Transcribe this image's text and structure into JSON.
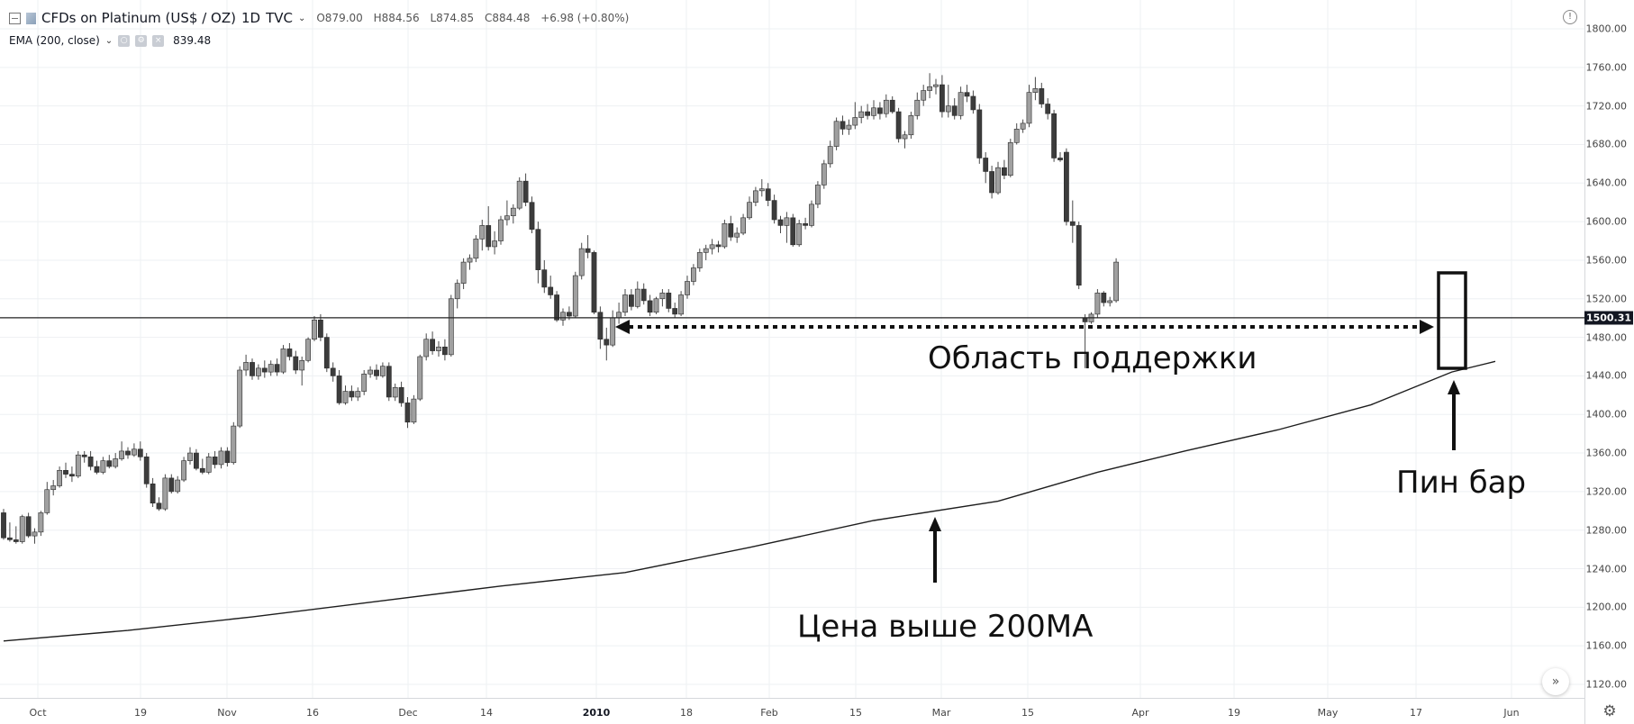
{
  "header": {
    "symbol": "CFDs on Platinum (US$ / OZ)",
    "interval": "1D",
    "source": "TVC",
    "ohlc": {
      "open": "O879.00",
      "high": "H884.56",
      "low": "L874.85",
      "close": "C884.48",
      "change": "+6.98 (+0.80%)"
    },
    "indicator": {
      "label": "EMA (200, close)",
      "value": "839.48"
    }
  },
  "colors": {
    "up": "#a0a0a0",
    "down": "#3c3c3c",
    "wick": "#4a4a4a",
    "ema": "#1e1e1e",
    "support": "#222222",
    "grid": "#eef0f3",
    "annotation": "#111111"
  },
  "icons": {
    "info": "info-icon",
    "settings": "gear-icon",
    "scroll": "chevron-right-icon",
    "collapse": "collapse-icon"
  },
  "axis": {
    "y_ticks": [
      "1800.00",
      "1760.00",
      "1720.00",
      "1680.00",
      "1640.00",
      "1600.00",
      "1560.00",
      "1520.00",
      "1480.00",
      "1440.00",
      "1400.00",
      "1360.00",
      "1320.00",
      "1280.00",
      "1240.00",
      "1200.00",
      "1160.00",
      "1120.00"
    ],
    "x_ticks": [
      {
        "label": "Oct",
        "bold": false
      },
      {
        "label": "19",
        "bold": false
      },
      {
        "label": "Nov",
        "bold": false
      },
      {
        "label": "16",
        "bold": false
      },
      {
        "label": "Dec",
        "bold": false
      },
      {
        "label": "14",
        "bold": false
      },
      {
        "label": "2010",
        "bold": true
      },
      {
        "label": "18",
        "bold": false
      },
      {
        "label": "Feb",
        "bold": false
      },
      {
        "label": "15",
        "bold": false
      },
      {
        "label": "Mar",
        "bold": false
      },
      {
        "label": "15",
        "bold": false
      },
      {
        "label": "Apr",
        "bold": false
      },
      {
        "label": "19",
        "bold": false
      },
      {
        "label": "May",
        "bold": false
      },
      {
        "label": "17",
        "bold": false
      },
      {
        "label": "Jun",
        "bold": false
      }
    ],
    "price_line_label": "1500.31"
  },
  "annotations": {
    "support": "Область поддержки",
    "pinbar": "Пин бар",
    "ema_note": "Цена выше 200MA"
  },
  "chart_data": {
    "type": "candlestick",
    "title": "CFDs on Platinum (US$ / OZ)",
    "ylim": [
      1112,
      1820
    ],
    "grid": true,
    "horizontal_line": 1500.31,
    "candles": [
      {
        "o": 1298,
        "h": 1302,
        "l": 1270,
        "c": 1272
      },
      {
        "o": 1272,
        "h": 1288,
        "l": 1268,
        "c": 1270
      },
      {
        "o": 1270,
        "h": 1284,
        "l": 1266,
        "c": 1268
      },
      {
        "o": 1268,
        "h": 1296,
        "l": 1266,
        "c": 1294
      },
      {
        "o": 1294,
        "h": 1298,
        "l": 1272,
        "c": 1274
      },
      {
        "o": 1274,
        "h": 1282,
        "l": 1266,
        "c": 1278
      },
      {
        "o": 1278,
        "h": 1300,
        "l": 1274,
        "c": 1298
      },
      {
        "o": 1298,
        "h": 1330,
        "l": 1296,
        "c": 1322
      },
      {
        "o": 1322,
        "h": 1332,
        "l": 1316,
        "c": 1326
      },
      {
        "o": 1326,
        "h": 1346,
        "l": 1324,
        "c": 1342
      },
      {
        "o": 1342,
        "h": 1350,
        "l": 1334,
        "c": 1338
      },
      {
        "o": 1338,
        "h": 1346,
        "l": 1330,
        "c": 1336
      },
      {
        "o": 1336,
        "h": 1362,
        "l": 1334,
        "c": 1358
      },
      {
        "o": 1358,
        "h": 1362,
        "l": 1350,
        "c": 1356
      },
      {
        "o": 1356,
        "h": 1362,
        "l": 1342,
        "c": 1346
      },
      {
        "o": 1346,
        "h": 1352,
        "l": 1338,
        "c": 1340
      },
      {
        "o": 1340,
        "h": 1356,
        "l": 1338,
        "c": 1352
      },
      {
        "o": 1352,
        "h": 1358,
        "l": 1344,
        "c": 1346
      },
      {
        "o": 1346,
        "h": 1360,
        "l": 1344,
        "c": 1354
      },
      {
        "o": 1354,
        "h": 1372,
        "l": 1352,
        "c": 1362
      },
      {
        "o": 1362,
        "h": 1366,
        "l": 1354,
        "c": 1358
      },
      {
        "o": 1358,
        "h": 1370,
        "l": 1356,
        "c": 1364
      },
      {
        "o": 1364,
        "h": 1372,
        "l": 1352,
        "c": 1356
      },
      {
        "o": 1356,
        "h": 1360,
        "l": 1324,
        "c": 1328
      },
      {
        "o": 1328,
        "h": 1334,
        "l": 1304,
        "c": 1308
      },
      {
        "o": 1308,
        "h": 1314,
        "l": 1300,
        "c": 1302
      },
      {
        "o": 1302,
        "h": 1338,
        "l": 1300,
        "c": 1334
      },
      {
        "o": 1334,
        "h": 1338,
        "l": 1318,
        "c": 1320
      },
      {
        "o": 1320,
        "h": 1336,
        "l": 1318,
        "c": 1332
      },
      {
        "o": 1332,
        "h": 1356,
        "l": 1330,
        "c": 1352
      },
      {
        "o": 1352,
        "h": 1366,
        "l": 1348,
        "c": 1360
      },
      {
        "o": 1360,
        "h": 1364,
        "l": 1342,
        "c": 1344
      },
      {
        "o": 1344,
        "h": 1354,
        "l": 1338,
        "c": 1340
      },
      {
        "o": 1340,
        "h": 1360,
        "l": 1338,
        "c": 1356
      },
      {
        "o": 1356,
        "h": 1362,
        "l": 1344,
        "c": 1348
      },
      {
        "o": 1348,
        "h": 1366,
        "l": 1344,
        "c": 1362
      },
      {
        "o": 1362,
        "h": 1366,
        "l": 1346,
        "c": 1350
      },
      {
        "o": 1350,
        "h": 1392,
        "l": 1348,
        "c": 1388
      },
      {
        "o": 1388,
        "h": 1450,
        "l": 1386,
        "c": 1446
      },
      {
        "o": 1446,
        "h": 1462,
        "l": 1440,
        "c": 1454
      },
      {
        "o": 1454,
        "h": 1458,
        "l": 1436,
        "c": 1440
      },
      {
        "o": 1440,
        "h": 1452,
        "l": 1436,
        "c": 1448
      },
      {
        "o": 1448,
        "h": 1456,
        "l": 1438,
        "c": 1444
      },
      {
        "o": 1444,
        "h": 1456,
        "l": 1440,
        "c": 1452
      },
      {
        "o": 1452,
        "h": 1458,
        "l": 1440,
        "c": 1444
      },
      {
        "o": 1444,
        "h": 1472,
        "l": 1442,
        "c": 1468
      },
      {
        "o": 1468,
        "h": 1474,
        "l": 1456,
        "c": 1460
      },
      {
        "o": 1460,
        "h": 1466,
        "l": 1442,
        "c": 1446
      },
      {
        "o": 1446,
        "h": 1460,
        "l": 1430,
        "c": 1456
      },
      {
        "o": 1456,
        "h": 1480,
        "l": 1454,
        "c": 1478
      },
      {
        "o": 1478,
        "h": 1502,
        "l": 1476,
        "c": 1498
      },
      {
        "o": 1498,
        "h": 1504,
        "l": 1476,
        "c": 1480
      },
      {
        "o": 1480,
        "h": 1484,
        "l": 1444,
        "c": 1448
      },
      {
        "o": 1448,
        "h": 1454,
        "l": 1434,
        "c": 1440
      },
      {
        "o": 1440,
        "h": 1446,
        "l": 1410,
        "c": 1412
      },
      {
        "o": 1412,
        "h": 1430,
        "l": 1410,
        "c": 1424
      },
      {
        "o": 1424,
        "h": 1430,
        "l": 1414,
        "c": 1418
      },
      {
        "o": 1418,
        "h": 1428,
        "l": 1414,
        "c": 1424
      },
      {
        "o": 1424,
        "h": 1446,
        "l": 1420,
        "c": 1442
      },
      {
        "o": 1442,
        "h": 1450,
        "l": 1438,
        "c": 1446
      },
      {
        "o": 1446,
        "h": 1452,
        "l": 1436,
        "c": 1440
      },
      {
        "o": 1440,
        "h": 1454,
        "l": 1438,
        "c": 1450
      },
      {
        "o": 1450,
        "h": 1454,
        "l": 1414,
        "c": 1418
      },
      {
        "o": 1418,
        "h": 1432,
        "l": 1414,
        "c": 1428
      },
      {
        "o": 1428,
        "h": 1434,
        "l": 1408,
        "c": 1412
      },
      {
        "o": 1412,
        "h": 1418,
        "l": 1386,
        "c": 1392
      },
      {
        "o": 1392,
        "h": 1420,
        "l": 1390,
        "c": 1416
      },
      {
        "o": 1416,
        "h": 1462,
        "l": 1414,
        "c": 1460
      },
      {
        "o": 1460,
        "h": 1484,
        "l": 1456,
        "c": 1478
      },
      {
        "o": 1478,
        "h": 1486,
        "l": 1462,
        "c": 1466
      },
      {
        "o": 1466,
        "h": 1476,
        "l": 1460,
        "c": 1470
      },
      {
        "o": 1470,
        "h": 1478,
        "l": 1456,
        "c": 1462
      },
      {
        "o": 1462,
        "h": 1524,
        "l": 1460,
        "c": 1520
      },
      {
        "o": 1520,
        "h": 1540,
        "l": 1510,
        "c": 1536
      },
      {
        "o": 1536,
        "h": 1562,
        "l": 1530,
        "c": 1558
      },
      {
        "o": 1558,
        "h": 1566,
        "l": 1550,
        "c": 1562
      },
      {
        "o": 1562,
        "h": 1586,
        "l": 1558,
        "c": 1582
      },
      {
        "o": 1582,
        "h": 1602,
        "l": 1570,
        "c": 1596
      },
      {
        "o": 1596,
        "h": 1616,
        "l": 1570,
        "c": 1574
      },
      {
        "o": 1574,
        "h": 1590,
        "l": 1566,
        "c": 1580
      },
      {
        "o": 1580,
        "h": 1606,
        "l": 1576,
        "c": 1602
      },
      {
        "o": 1602,
        "h": 1622,
        "l": 1596,
        "c": 1606
      },
      {
        "o": 1606,
        "h": 1618,
        "l": 1598,
        "c": 1614
      },
      {
        "o": 1614,
        "h": 1646,
        "l": 1612,
        "c": 1642
      },
      {
        "o": 1642,
        "h": 1650,
        "l": 1616,
        "c": 1620
      },
      {
        "o": 1620,
        "h": 1626,
        "l": 1588,
        "c": 1592
      },
      {
        "o": 1592,
        "h": 1600,
        "l": 1536,
        "c": 1550
      },
      {
        "o": 1550,
        "h": 1560,
        "l": 1526,
        "c": 1532
      },
      {
        "o": 1532,
        "h": 1544,
        "l": 1520,
        "c": 1524
      },
      {
        "o": 1524,
        "h": 1528,
        "l": 1496,
        "c": 1498
      },
      {
        "o": 1498,
        "h": 1510,
        "l": 1492,
        "c": 1506
      },
      {
        "o": 1506,
        "h": 1512,
        "l": 1498,
        "c": 1502
      },
      {
        "o": 1502,
        "h": 1548,
        "l": 1500,
        "c": 1544
      },
      {
        "o": 1544,
        "h": 1578,
        "l": 1540,
        "c": 1572
      },
      {
        "o": 1572,
        "h": 1586,
        "l": 1562,
        "c": 1568
      },
      {
        "o": 1568,
        "h": 1570,
        "l": 1504,
        "c": 1506
      },
      {
        "o": 1506,
        "h": 1512,
        "l": 1468,
        "c": 1478
      },
      {
        "o": 1478,
        "h": 1490,
        "l": 1456,
        "c": 1472
      },
      {
        "o": 1472,
        "h": 1508,
        "l": 1470,
        "c": 1500
      },
      {
        "o": 1500,
        "h": 1516,
        "l": 1494,
        "c": 1506
      },
      {
        "o": 1506,
        "h": 1530,
        "l": 1502,
        "c": 1524
      },
      {
        "o": 1524,
        "h": 1530,
        "l": 1508,
        "c": 1512
      },
      {
        "o": 1512,
        "h": 1538,
        "l": 1510,
        "c": 1530
      },
      {
        "o": 1530,
        "h": 1536,
        "l": 1514,
        "c": 1518
      },
      {
        "o": 1518,
        "h": 1524,
        "l": 1502,
        "c": 1506
      },
      {
        "o": 1506,
        "h": 1522,
        "l": 1504,
        "c": 1520
      },
      {
        "o": 1520,
        "h": 1530,
        "l": 1512,
        "c": 1526
      },
      {
        "o": 1526,
        "h": 1530,
        "l": 1506,
        "c": 1510
      },
      {
        "o": 1510,
        "h": 1516,
        "l": 1500,
        "c": 1504
      },
      {
        "o": 1504,
        "h": 1528,
        "l": 1502,
        "c": 1524
      },
      {
        "o": 1524,
        "h": 1544,
        "l": 1520,
        "c": 1538
      },
      {
        "o": 1538,
        "h": 1556,
        "l": 1534,
        "c": 1552
      },
      {
        "o": 1552,
        "h": 1572,
        "l": 1548,
        "c": 1568
      },
      {
        "o": 1568,
        "h": 1576,
        "l": 1560,
        "c": 1572
      },
      {
        "o": 1572,
        "h": 1582,
        "l": 1566,
        "c": 1576
      },
      {
        "o": 1576,
        "h": 1580,
        "l": 1568,
        "c": 1574
      },
      {
        "o": 1574,
        "h": 1602,
        "l": 1572,
        "c": 1598
      },
      {
        "o": 1598,
        "h": 1606,
        "l": 1580,
        "c": 1584
      },
      {
        "o": 1584,
        "h": 1594,
        "l": 1578,
        "c": 1588
      },
      {
        "o": 1588,
        "h": 1608,
        "l": 1586,
        "c": 1604
      },
      {
        "o": 1604,
        "h": 1626,
        "l": 1602,
        "c": 1620
      },
      {
        "o": 1620,
        "h": 1636,
        "l": 1616,
        "c": 1632
      },
      {
        "o": 1632,
        "h": 1644,
        "l": 1626,
        "c": 1634
      },
      {
        "o": 1634,
        "h": 1640,
        "l": 1616,
        "c": 1622
      },
      {
        "o": 1622,
        "h": 1628,
        "l": 1598,
        "c": 1602
      },
      {
        "o": 1602,
        "h": 1606,
        "l": 1588,
        "c": 1596
      },
      {
        "o": 1596,
        "h": 1610,
        "l": 1578,
        "c": 1604
      },
      {
        "o": 1604,
        "h": 1608,
        "l": 1574,
        "c": 1576
      },
      {
        "o": 1576,
        "h": 1602,
        "l": 1574,
        "c": 1598
      },
      {
        "o": 1598,
        "h": 1604,
        "l": 1592,
        "c": 1596
      },
      {
        "o": 1596,
        "h": 1622,
        "l": 1594,
        "c": 1618
      },
      {
        "o": 1618,
        "h": 1642,
        "l": 1614,
        "c": 1638
      },
      {
        "o": 1638,
        "h": 1664,
        "l": 1634,
        "c": 1660
      },
      {
        "o": 1660,
        "h": 1684,
        "l": 1656,
        "c": 1678
      },
      {
        "o": 1678,
        "h": 1708,
        "l": 1674,
        "c": 1704
      },
      {
        "o": 1704,
        "h": 1710,
        "l": 1690,
        "c": 1696
      },
      {
        "o": 1696,
        "h": 1706,
        "l": 1690,
        "c": 1700
      },
      {
        "o": 1700,
        "h": 1724,
        "l": 1696,
        "c": 1708
      },
      {
        "o": 1708,
        "h": 1720,
        "l": 1702,
        "c": 1714
      },
      {
        "o": 1714,
        "h": 1722,
        "l": 1706,
        "c": 1710
      },
      {
        "o": 1710,
        "h": 1726,
        "l": 1706,
        "c": 1718
      },
      {
        "o": 1718,
        "h": 1724,
        "l": 1706,
        "c": 1712
      },
      {
        "o": 1712,
        "h": 1732,
        "l": 1708,
        "c": 1726
      },
      {
        "o": 1726,
        "h": 1730,
        "l": 1712,
        "c": 1714
      },
      {
        "o": 1714,
        "h": 1718,
        "l": 1682,
        "c": 1686
      },
      {
        "o": 1686,
        "h": 1694,
        "l": 1676,
        "c": 1690
      },
      {
        "o": 1690,
        "h": 1714,
        "l": 1686,
        "c": 1710
      },
      {
        "o": 1710,
        "h": 1734,
        "l": 1706,
        "c": 1726
      },
      {
        "o": 1726,
        "h": 1742,
        "l": 1720,
        "c": 1736
      },
      {
        "o": 1736,
        "h": 1754,
        "l": 1728,
        "c": 1740
      },
      {
        "o": 1740,
        "h": 1748,
        "l": 1732,
        "c": 1742
      },
      {
        "o": 1742,
        "h": 1752,
        "l": 1708,
        "c": 1714
      },
      {
        "o": 1714,
        "h": 1742,
        "l": 1708,
        "c": 1720
      },
      {
        "o": 1720,
        "h": 1728,
        "l": 1706,
        "c": 1710
      },
      {
        "o": 1710,
        "h": 1740,
        "l": 1706,
        "c": 1734
      },
      {
        "o": 1734,
        "h": 1742,
        "l": 1724,
        "c": 1730
      },
      {
        "o": 1730,
        "h": 1736,
        "l": 1712,
        "c": 1716
      },
      {
        "o": 1716,
        "h": 1722,
        "l": 1660,
        "c": 1666
      },
      {
        "o": 1666,
        "h": 1672,
        "l": 1640,
        "c": 1652
      },
      {
        "o": 1652,
        "h": 1658,
        "l": 1624,
        "c": 1630
      },
      {
        "o": 1630,
        "h": 1662,
        "l": 1628,
        "c": 1656
      },
      {
        "o": 1656,
        "h": 1664,
        "l": 1644,
        "c": 1648
      },
      {
        "o": 1648,
        "h": 1686,
        "l": 1646,
        "c": 1682
      },
      {
        "o": 1682,
        "h": 1702,
        "l": 1680,
        "c": 1696
      },
      {
        "o": 1696,
        "h": 1706,
        "l": 1692,
        "c": 1702
      },
      {
        "o": 1702,
        "h": 1742,
        "l": 1698,
        "c": 1734
      },
      {
        "o": 1734,
        "h": 1750,
        "l": 1726,
        "c": 1738
      },
      {
        "o": 1738,
        "h": 1744,
        "l": 1718,
        "c": 1722
      },
      {
        "o": 1722,
        "h": 1728,
        "l": 1706,
        "c": 1712
      },
      {
        "o": 1712,
        "h": 1716,
        "l": 1662,
        "c": 1666
      },
      {
        "o": 1666,
        "h": 1672,
        "l": 1662,
        "c": 1664
      },
      {
        "o": 1672,
        "h": 1676,
        "l": 1596,
        "c": 1600
      },
      {
        "o": 1600,
        "h": 1622,
        "l": 1578,
        "c": 1596
      },
      {
        "o": 1596,
        "h": 1600,
        "l": 1530,
        "c": 1534
      },
      {
        "o": 1500,
        "h": 1504,
        "l": 1448,
        "c": 1496
      },
      {
        "o": 1496,
        "h": 1506,
        "l": 1494,
        "c": 1504
      },
      {
        "o": 1504,
        "h": 1530,
        "l": 1500,
        "c": 1526
      },
      {
        "o": 1526,
        "h": 1528,
        "l": 1512,
        "c": 1516
      },
      {
        "o": 1516,
        "h": 1522,
        "l": 1512,
        "c": 1518
      },
      {
        "o": 1518,
        "h": 1562,
        "l": 1516,
        "c": 1558
      }
    ],
    "ema200": [
      {
        "i": 0,
        "v": 1165
      },
      {
        "i": 20,
        "v": 1176
      },
      {
        "i": 40,
        "v": 1190
      },
      {
        "i": 60,
        "v": 1206
      },
      {
        "i": 80,
        "v": 1222
      },
      {
        "i": 100,
        "v": 1236
      },
      {
        "i": 120,
        "v": 1262
      },
      {
        "i": 140,
        "v": 1290
      },
      {
        "i": 160,
        "v": 1310
      },
      {
        "i": 176,
        "v": 1340
      },
      {
        "i": 190,
        "v": 1362
      },
      {
        "i": 205,
        "v": 1384
      },
      {
        "i": 220,
        "v": 1410
      },
      {
        "i": 233,
        "v": 1444
      },
      {
        "i": 240,
        "v": 1455
      }
    ]
  }
}
